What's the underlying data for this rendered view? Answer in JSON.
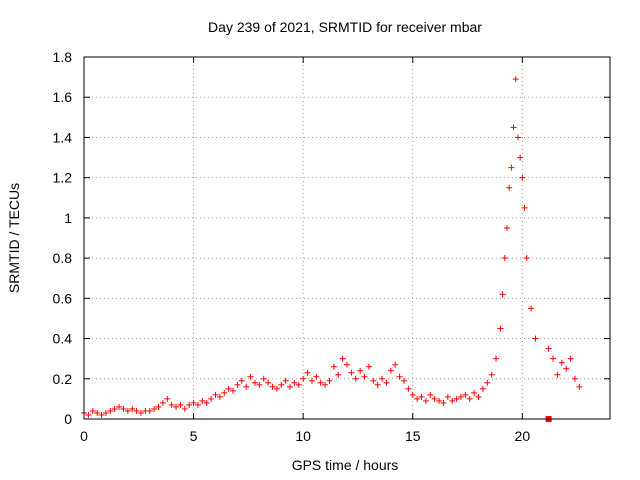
{
  "chart_data": {
    "type": "scatter",
    "title": "Day 239 of 2021, SRMTID for receiver mbar",
    "xlabel": "GPS time / hours",
    "ylabel": "SRMTID / TECUs",
    "xlim": [
      0,
      24
    ],
    "ylim": [
      0,
      1.8
    ],
    "x_ticks": [
      0,
      5,
      10,
      15,
      20
    ],
    "x_tick_labels": [
      "0",
      "5",
      "10",
      "15",
      "20"
    ],
    "y_ticks": [
      0,
      0.2,
      0.4,
      0.6,
      0.8,
      1.0,
      1.2,
      1.4,
      1.6,
      1.8
    ],
    "y_tick_labels": [
      "0",
      "0.2",
      "0.4",
      "0.6",
      "0.8",
      "1",
      "1.2",
      "1.4",
      "1.6",
      "1.8"
    ],
    "grid": true,
    "marker": "plus",
    "color": "#ff0000",
    "series": [
      {
        "name": "SRMTID",
        "x": [
          0.0,
          0.2,
          0.4,
          0.6,
          0.8,
          1.0,
          1.2,
          1.4,
          1.6,
          1.8,
          2.0,
          2.2,
          2.4,
          2.6,
          2.8,
          3.0,
          3.2,
          3.4,
          3.6,
          3.8,
          4.0,
          4.2,
          4.4,
          4.6,
          4.8,
          5.0,
          5.2,
          5.4,
          5.6,
          5.8,
          6.0,
          6.2,
          6.4,
          6.6,
          6.8,
          7.0,
          7.2,
          7.4,
          7.6,
          7.8,
          8.0,
          8.2,
          8.4,
          8.6,
          8.8,
          9.0,
          9.2,
          9.4,
          9.6,
          9.8,
          10.0,
          10.2,
          10.4,
          10.6,
          10.8,
          11.0,
          11.2,
          11.4,
          11.6,
          11.8,
          12.0,
          12.2,
          12.4,
          12.6,
          12.8,
          13.0,
          13.2,
          13.4,
          13.6,
          13.8,
          14.0,
          14.2,
          14.4,
          14.6,
          14.8,
          15.0,
          15.2,
          15.4,
          15.6,
          15.8,
          16.0,
          16.2,
          16.4,
          16.6,
          16.8,
          17.0,
          17.2,
          17.4,
          17.6,
          17.8,
          18.0,
          18.2,
          18.4,
          18.6,
          18.8,
          19.0,
          19.1,
          19.2,
          19.3,
          19.4,
          19.5,
          19.6,
          19.7,
          19.8,
          19.9,
          20.0,
          20.1,
          20.2,
          20.4,
          20.6,
          21.2,
          21.4,
          21.6,
          21.8,
          22.0,
          22.2,
          22.4,
          22.6
        ],
        "y": [
          0.03,
          0.02,
          0.04,
          0.03,
          0.02,
          0.03,
          0.04,
          0.05,
          0.06,
          0.05,
          0.04,
          0.05,
          0.04,
          0.03,
          0.04,
          0.04,
          0.05,
          0.06,
          0.08,
          0.1,
          0.07,
          0.06,
          0.07,
          0.05,
          0.07,
          0.08,
          0.07,
          0.09,
          0.08,
          0.1,
          0.12,
          0.11,
          0.13,
          0.15,
          0.14,
          0.17,
          0.19,
          0.16,
          0.21,
          0.18,
          0.17,
          0.2,
          0.18,
          0.16,
          0.15,
          0.17,
          0.19,
          0.16,
          0.18,
          0.17,
          0.2,
          0.23,
          0.19,
          0.21,
          0.18,
          0.17,
          0.19,
          0.26,
          0.22,
          0.3,
          0.27,
          0.23,
          0.2,
          0.24,
          0.21,
          0.26,
          0.19,
          0.17,
          0.2,
          0.18,
          0.24,
          0.27,
          0.21,
          0.19,
          0.15,
          0.12,
          0.1,
          0.11,
          0.09,
          0.12,
          0.1,
          0.09,
          0.08,
          0.11,
          0.09,
          0.1,
          0.11,
          0.12,
          0.1,
          0.13,
          0.11,
          0.15,
          0.18,
          0.22,
          0.3,
          0.45,
          0.62,
          0.8,
          0.95,
          1.15,
          1.25,
          1.45,
          1.69,
          1.4,
          1.3,
          1.2,
          1.05,
          0.8,
          0.55,
          0.4,
          0.35,
          0.3,
          0.22,
          0.28,
          0.25,
          0.3,
          0.2,
          0.16
        ],
        "extra_points": {
          "x": [
            21.2
          ],
          "y": [
            0.0
          ]
        }
      }
    ]
  }
}
